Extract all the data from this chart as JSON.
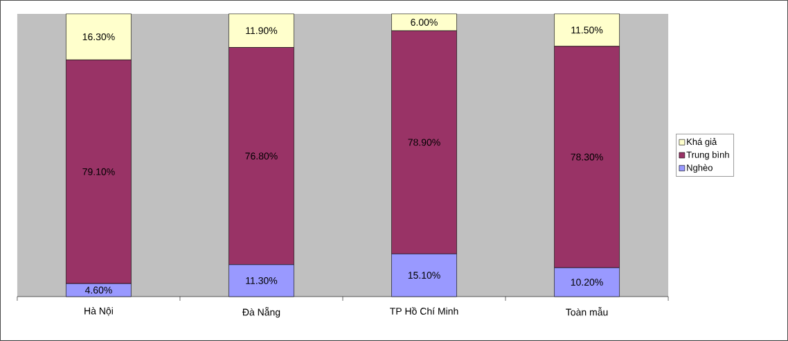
{
  "chart_data": {
    "type": "bar",
    "stacked": true,
    "categories": [
      "Hà Nội",
      "Đà Nẵng",
      "TP Hồ Chí Minh",
      "Toàn mẫu"
    ],
    "series": [
      {
        "name": "Nghèo",
        "color": "#9999ff",
        "values": [
          4.6,
          11.3,
          15.1,
          10.2
        ],
        "value_labels": [
          "4.60%",
          "11.30%",
          "15.10%",
          "10.20%"
        ]
      },
      {
        "name": "Trung bình",
        "color": "#993366",
        "values": [
          79.1,
          76.8,
          78.9,
          78.3
        ],
        "value_labels": [
          "79.10%",
          "76.80%",
          "78.90%",
          "78.30%"
        ]
      },
      {
        "name": "Khá giả",
        "color": "#ffffcc",
        "values": [
          16.3,
          11.9,
          6.0,
          11.5
        ],
        "value_labels": [
          "16.30%",
          "11.90%",
          "6.00%",
          "11.50%"
        ]
      }
    ],
    "legend": "right"
  }
}
